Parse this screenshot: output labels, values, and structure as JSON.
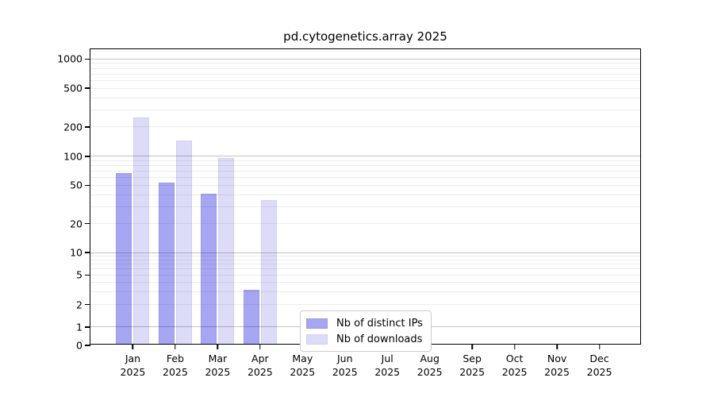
{
  "chart_data": {
    "type": "bar",
    "title": "pd.cytogenetics.array 2025",
    "year": "2025",
    "categories": [
      "Jan",
      "Feb",
      "Mar",
      "Apr",
      "May",
      "Jun",
      "Jul",
      "Aug",
      "Sep",
      "Oct",
      "Nov",
      "Dec"
    ],
    "series": [
      {
        "name": "Nb of distinct IPs",
        "color": "#a6a6f2",
        "edge_color": "#9a9aec",
        "values": [
          65,
          51,
          39,
          3,
          0,
          0,
          0,
          0,
          0,
          0,
          0,
          0
        ]
      },
      {
        "name": "Nb of downloads",
        "color": "#dcdcf9",
        "edge_color": "#cfcff5",
        "values": [
          240,
          140,
          92,
          34,
          0,
          0,
          0,
          0,
          0,
          0,
          0,
          0
        ]
      }
    ],
    "y_axis": {
      "scale": "log-like (linear below 1, log decades above)",
      "range": [
        0,
        1000
      ],
      "tick_values": [
        0,
        1,
        2,
        5,
        10,
        20,
        50,
        100,
        200,
        500,
        1000
      ],
      "major_gridlines": [
        1,
        10,
        100,
        1000
      ],
      "minor_gridlines": [
        2,
        3,
        4,
        5,
        6,
        7,
        8,
        9,
        20,
        30,
        40,
        50,
        60,
        70,
        80,
        90,
        200,
        300,
        400,
        500,
        600,
        700,
        800,
        900
      ],
      "anchor_fractions": [
        [
          0,
          0.0
        ],
        [
          1,
          0.062
        ],
        [
          10,
          0.3136
        ],
        [
          100,
          0.6384
        ],
        [
          1000,
          0.967
        ]
      ]
    },
    "x_axis": {
      "tick_label_line2": "2025"
    },
    "legend": {
      "position": "inside-bottom-center",
      "items": [
        "Nb of distinct IPs",
        "Nb of downloads"
      ]
    },
    "grid": true,
    "colors": {
      "background": "#ffffff",
      "axis": "#000000",
      "major_grid": "#c3c3c3",
      "minor_grid": "#ececec"
    }
  }
}
